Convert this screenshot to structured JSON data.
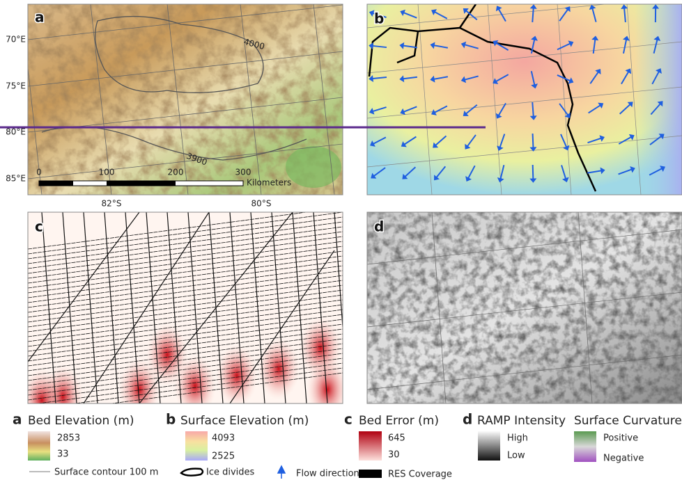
{
  "panels": [
    {
      "letter": "a"
    },
    {
      "letter": "b"
    },
    {
      "letter": "c"
    },
    {
      "letter": "d"
    }
  ],
  "panel_a": {
    "lon_labels": [
      "70°E",
      "75°E",
      "80°E",
      "85°E"
    ],
    "lat_labels": [
      "82°S",
      "80°S"
    ],
    "contour_labels": [
      4000,
      3900
    ],
    "scale_ticks": [
      0,
      100,
      200,
      300
    ],
    "scale_unit": "Kilometers"
  },
  "legend": {
    "a": {
      "title": "Bed Elevation (m)",
      "high": 2853,
      "low": 33,
      "line": "Surface contour 100 m"
    },
    "b": {
      "title": "Surface Elevation (m)",
      "high": 4093,
      "low": 2525,
      "divides": "Ice divides",
      "flow": "Flow direction"
    },
    "c": {
      "title": "Bed Error (m)",
      "high": 645,
      "low": 30,
      "coverage": "RES Coverage"
    },
    "d": {
      "title": "RAMP Intensity",
      "high": "High",
      "low": "Low",
      "title2": "Surface Curvature",
      "pos": "Positive",
      "neg": "Negative"
    }
  }
}
